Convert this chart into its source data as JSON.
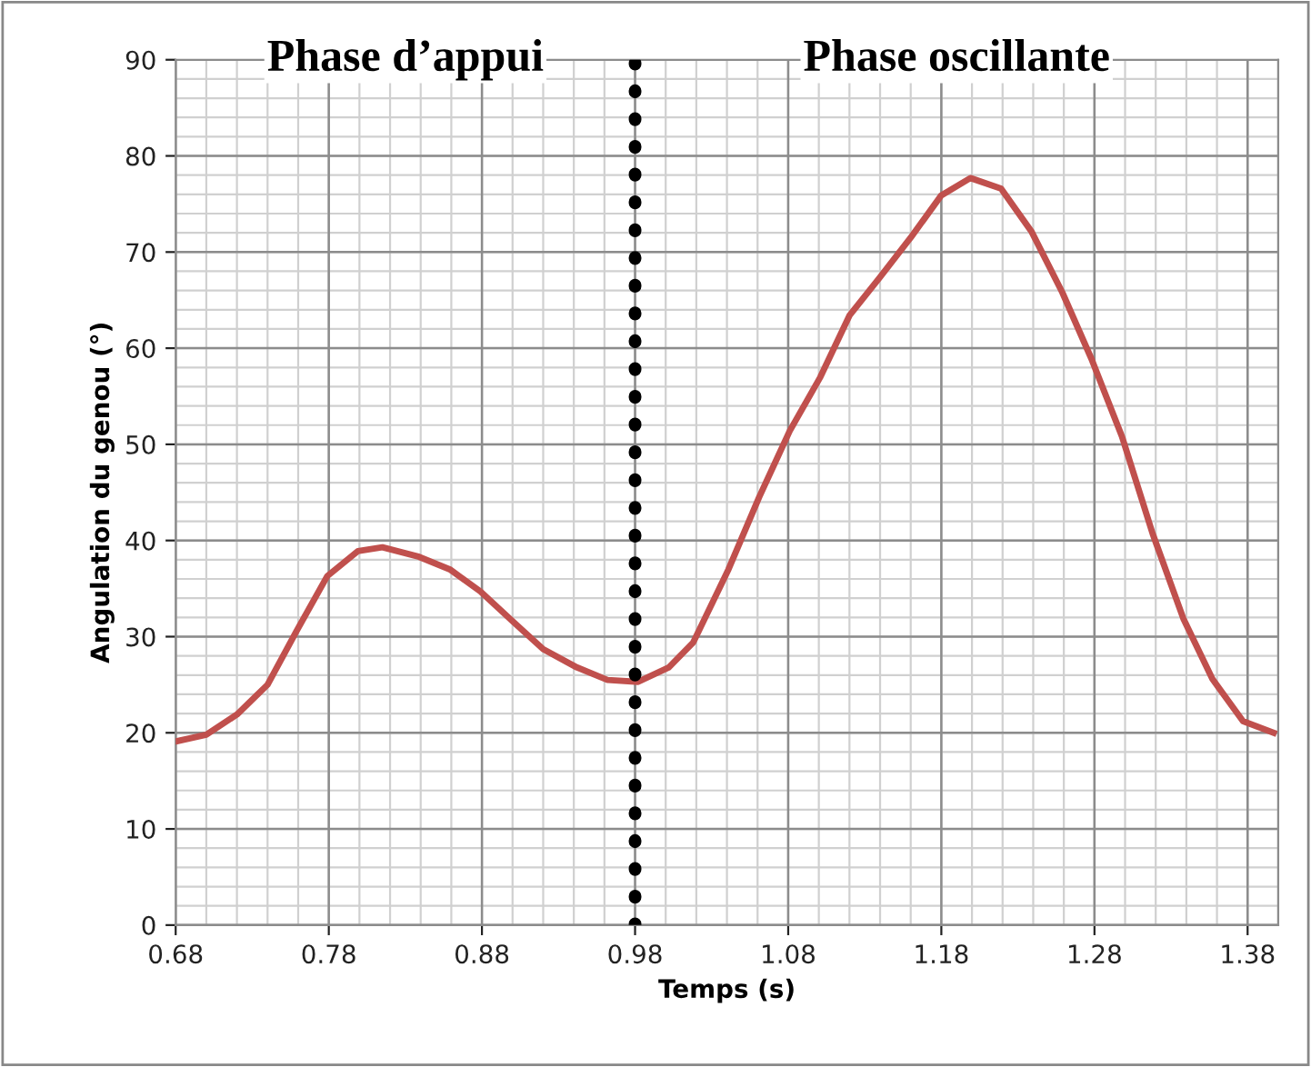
{
  "chart_data": {
    "type": "line",
    "xlabel": "Temps (s)",
    "ylabel": "Angulation du genou (°)",
    "x": [
      0.68,
      0.7,
      0.72,
      0.74,
      0.759,
      0.779,
      0.799,
      0.815,
      0.839,
      0.859,
      0.879,
      0.9,
      0.92,
      0.942,
      0.962,
      0.982,
      1.002,
      1.018,
      1.041,
      1.061,
      1.081,
      1.101,
      1.12,
      1.14,
      1.16,
      1.18,
      1.199,
      1.219,
      1.239,
      1.259,
      1.278,
      1.298,
      1.318,
      1.338,
      1.357,
      1.377,
      1.397
    ],
    "series": [
      {
        "color": "#c0504d",
        "values": [
          19.1,
          19.8,
          21.9,
          25,
          30.6,
          36.3,
          38.9,
          39.3,
          38.3,
          37,
          34.7,
          31.6,
          28.7,
          26.8,
          25.5,
          25.3,
          26.8,
          29.4,
          37,
          44.5,
          51.4,
          57,
          63.4,
          67.4,
          71.5,
          75.9,
          77.7,
          76.6,
          72.1,
          65.8,
          58.9,
          50.8,
          40.7,
          31.9,
          25.6,
          21.2,
          20
        ]
      }
    ],
    "xlim": [
      0.68,
      1.4
    ],
    "xticks": [
      0.68,
      0.78,
      0.88,
      0.98,
      1.08,
      1.18,
      1.28,
      1.38
    ],
    "ylim": [
      0,
      90
    ],
    "yticks": [
      0,
      10,
      20,
      30,
      40,
      50,
      60,
      70,
      80,
      90
    ],
    "grid": true,
    "marker": "none",
    "line_style": "solid",
    "ref_lines": [
      {
        "axis": "x",
        "value": 0.98,
        "color": "#000000",
        "line_style": "dotted"
      }
    ],
    "annotations": [
      "Phase d’appui",
      "Phase oscillante"
    ]
  }
}
